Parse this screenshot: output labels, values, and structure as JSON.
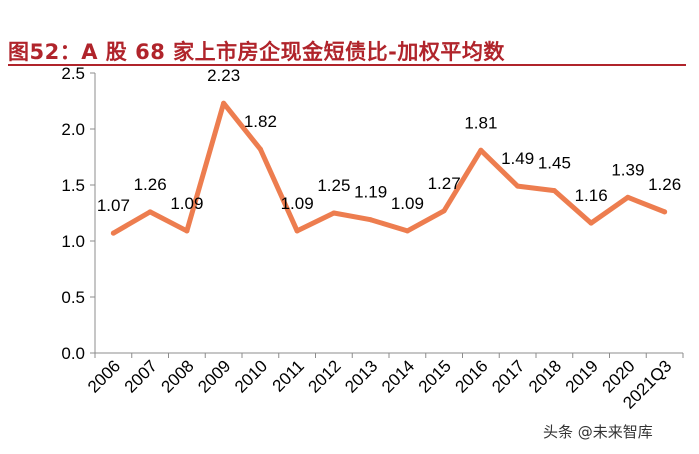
{
  "title": "图52：A 股 68 家上市房企现金短债比-加权平均数",
  "watermark": "头条 @未来智库",
  "colors": {
    "title": "#b0242b",
    "line": "#ed7d4f",
    "axis": "#8c8c8c",
    "text": "#000000"
  },
  "chart_data": {
    "type": "line",
    "title": "",
    "xlabel": "",
    "ylabel": "",
    "categories": [
      "2006",
      "2007",
      "2008",
      "2009",
      "2010",
      "2011",
      "2012",
      "2013",
      "2014",
      "2015",
      "2016",
      "2017",
      "2018",
      "2019",
      "2020",
      "2021Q3"
    ],
    "series": [
      {
        "values": [
          1.07,
          1.26,
          1.09,
          2.23,
          1.82,
          1.09,
          1.25,
          1.19,
          1.09,
          1.27,
          1.81,
          1.49,
          1.45,
          1.16,
          1.39,
          1.26
        ]
      }
    ],
    "ylim": [
      0,
      2.5
    ],
    "yticks": [
      "0.0",
      "0.5",
      "1.0",
      "1.5",
      "2.0",
      "2.5"
    ],
    "data_labels": [
      "1.07",
      "1.26",
      "1.09",
      "2.23",
      "1.82",
      "1.09",
      "1.25",
      "1.19",
      "1.09",
      "1.27",
      "1.81",
      "1.49",
      "1.45",
      "1.16",
      "1.39",
      "1.26"
    ],
    "grid": false,
    "legend": "none"
  }
}
